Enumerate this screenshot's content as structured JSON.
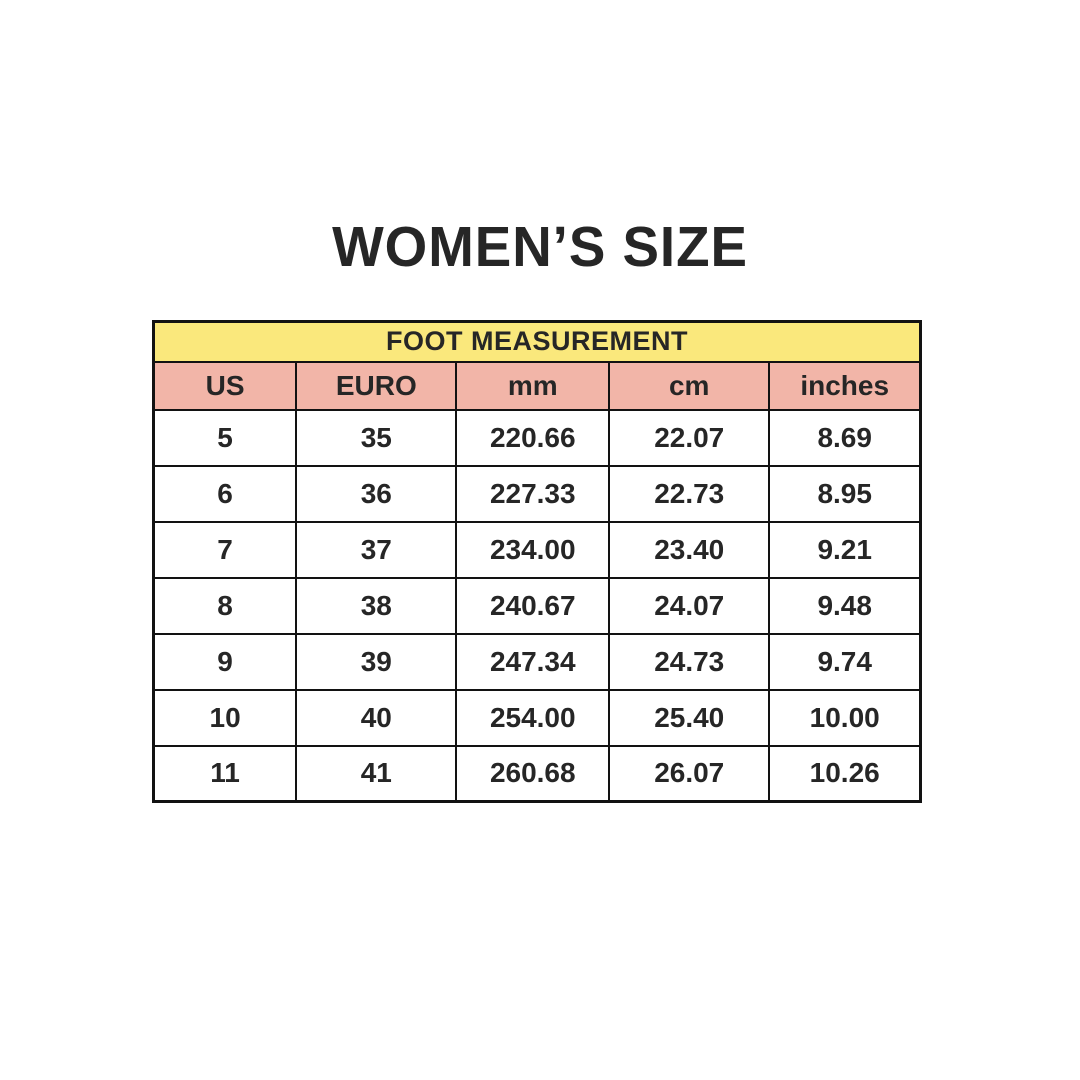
{
  "page": {
    "title": "WOMEN’S SIZE"
  },
  "colors": {
    "banner-bg": "#fae87c",
    "header-bg": "#f2b5a8",
    "border": "#121212",
    "text": "#262626",
    "page-bg": "#ffffff"
  },
  "chart_data": {
    "type": "table",
    "title": "WOMEN’S SIZE",
    "banner": "FOOT MEASUREMENT",
    "columns": [
      "US",
      "EURO",
      "mm",
      "cm",
      "inches"
    ],
    "rows": [
      [
        "5",
        "35",
        "220.66",
        "22.07",
        "8.69"
      ],
      [
        "6",
        "36",
        "227.33",
        "22.73",
        "8.95"
      ],
      [
        "7",
        "37",
        "234.00",
        "23.40",
        "9.21"
      ],
      [
        "8",
        "38",
        "240.67",
        "24.07",
        "9.48"
      ],
      [
        "9",
        "39",
        "247.34",
        "24.73",
        "9.74"
      ],
      [
        "10",
        "40",
        "254.00",
        "25.40",
        "10.00"
      ],
      [
        "11",
        "41",
        "260.68",
        "26.07",
        "10.26"
      ]
    ],
    "layout": {
      "column_widths_pct": [
        18.6,
        20.9,
        19.9,
        20.9,
        19.7
      ],
      "legend": "none",
      "grid": "full-borders"
    }
  }
}
